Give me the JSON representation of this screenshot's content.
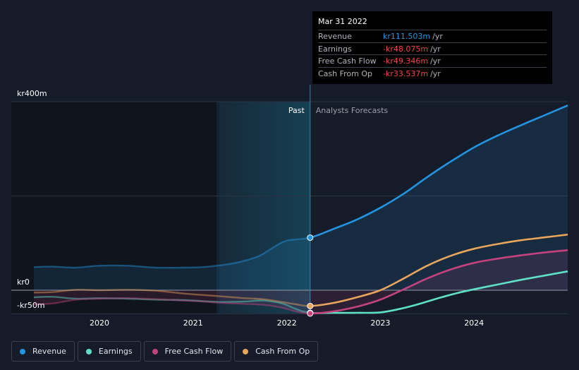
{
  "chart_data": {
    "type": "line",
    "y_axis": {
      "top_label": "kr400m",
      "zero_label": "kr0",
      "bottom_label": "-kr50m",
      "ylim": [
        -50,
        400
      ]
    },
    "xlim": [
      2019.3,
      2025.0
    ],
    "x_ticks": [
      {
        "value": 2020.0,
        "label": "2020"
      },
      {
        "value": 2021.0,
        "label": "2021"
      },
      {
        "value": 2022.0,
        "label": "2022"
      },
      {
        "value": 2023.0,
        "label": "2023"
      },
      {
        "value": 2024.0,
        "label": "2024"
      }
    ],
    "past_label": "Past",
    "forecast_label": "Analysts Forecasts",
    "past_band_start": 2021.25,
    "split_x": 2022.25,
    "series": [
      {
        "name": "Revenue",
        "color": "#2394df",
        "fill": true,
        "points": [
          [
            2019.3,
            49
          ],
          [
            2019.5,
            50
          ],
          [
            2019.75,
            48
          ],
          [
            2020.0,
            52
          ],
          [
            2020.3,
            52
          ],
          [
            2020.6,
            48
          ],
          [
            2020.9,
            48
          ],
          [
            2021.1,
            49
          ],
          [
            2021.3,
            53
          ],
          [
            2021.5,
            60
          ],
          [
            2021.7,
            72
          ],
          [
            2021.85,
            90
          ],
          [
            2022.0,
            105
          ],
          [
            2022.25,
            111.5
          ],
          [
            2022.5,
            130
          ],
          [
            2022.75,
            150
          ],
          [
            2023.0,
            175
          ],
          [
            2023.25,
            205
          ],
          [
            2023.5,
            240
          ],
          [
            2023.75,
            273
          ],
          [
            2024.0,
            303
          ],
          [
            2024.25,
            328
          ],
          [
            2024.5,
            350
          ],
          [
            2024.75,
            371
          ],
          [
            2025.0,
            392
          ]
        ]
      },
      {
        "name": "Earnings",
        "color": "#5ee0c8",
        "fill": false,
        "points": [
          [
            2019.3,
            -15
          ],
          [
            2019.5,
            -14
          ],
          [
            2019.75,
            -18
          ],
          [
            2020.0,
            -17
          ],
          [
            2020.3,
            -18
          ],
          [
            2020.6,
            -20
          ],
          [
            2020.9,
            -21
          ],
          [
            2021.1,
            -23
          ],
          [
            2021.3,
            -25
          ],
          [
            2021.55,
            -24
          ],
          [
            2021.75,
            -22
          ],
          [
            2021.95,
            -28
          ],
          [
            2022.1,
            -40
          ],
          [
            2022.25,
            -48.1
          ],
          [
            2022.5,
            -48
          ],
          [
            2022.75,
            -48
          ],
          [
            2023.0,
            -47
          ],
          [
            2023.2,
            -40
          ],
          [
            2023.4,
            -30
          ],
          [
            2023.6,
            -18
          ],
          [
            2023.8,
            -7
          ],
          [
            2024.0,
            2
          ],
          [
            2024.25,
            12
          ],
          [
            2024.5,
            22
          ],
          [
            2024.75,
            31
          ],
          [
            2025.0,
            40
          ]
        ]
      },
      {
        "name": "Free Cash Flow",
        "color": "#c4427f",
        "fill": true,
        "points": [
          [
            2019.3,
            -30
          ],
          [
            2019.5,
            -28
          ],
          [
            2019.75,
            -20
          ],
          [
            2020.0,
            -18
          ],
          [
            2020.3,
            -17
          ],
          [
            2020.6,
            -19
          ],
          [
            2020.9,
            -22
          ],
          [
            2021.1,
            -24
          ],
          [
            2021.3,
            -27
          ],
          [
            2021.55,
            -29
          ],
          [
            2021.75,
            -31
          ],
          [
            2021.95,
            -37
          ],
          [
            2022.1,
            -45
          ],
          [
            2022.25,
            -49.3
          ],
          [
            2022.5,
            -45
          ],
          [
            2022.75,
            -35
          ],
          [
            2023.0,
            -20
          ],
          [
            2023.25,
            2
          ],
          [
            2023.5,
            25
          ],
          [
            2023.75,
            44
          ],
          [
            2024.0,
            58
          ],
          [
            2024.25,
            67
          ],
          [
            2024.5,
            74
          ],
          [
            2024.75,
            80
          ],
          [
            2025.0,
            85
          ]
        ]
      },
      {
        "name": "Cash From Op",
        "color": "#e8a55b",
        "fill": false,
        "points": [
          [
            2019.3,
            -5
          ],
          [
            2019.5,
            -4
          ],
          [
            2019.75,
            1
          ],
          [
            2020.0,
            0
          ],
          [
            2020.3,
            1
          ],
          [
            2020.6,
            -1
          ],
          [
            2020.9,
            -7
          ],
          [
            2021.1,
            -10
          ],
          [
            2021.3,
            -13
          ],
          [
            2021.55,
            -17
          ],
          [
            2021.75,
            -19
          ],
          [
            2021.95,
            -25
          ],
          [
            2022.1,
            -30
          ],
          [
            2022.25,
            -33.5
          ],
          [
            2022.5,
            -27
          ],
          [
            2022.75,
            -15
          ],
          [
            2023.0,
            0
          ],
          [
            2023.25,
            25
          ],
          [
            2023.5,
            52
          ],
          [
            2023.75,
            73
          ],
          [
            2024.0,
            88
          ],
          [
            2024.25,
            98
          ],
          [
            2024.5,
            106
          ],
          [
            2024.75,
            112
          ],
          [
            2025.0,
            118
          ]
        ]
      }
    ]
  },
  "tooltip": {
    "date": "Mar 31 2022",
    "rows": [
      {
        "label": "Revenue",
        "value": "kr111.503m",
        "unit": "/yr",
        "color": "#2394df"
      },
      {
        "label": "Earnings",
        "value": "-kr48.075m",
        "unit": "/yr",
        "color": "#f2434b"
      },
      {
        "label": "Free Cash Flow",
        "value": "-kr49.346m",
        "unit": "/yr",
        "color": "#f2434b"
      },
      {
        "label": "Cash From Op",
        "value": "-kr33.537m",
        "unit": "/yr",
        "color": "#f2434b"
      }
    ]
  },
  "legend": [
    {
      "label": "Revenue",
      "color": "#2394df"
    },
    {
      "label": "Earnings",
      "color": "#5ee0c8"
    },
    {
      "label": "Free Cash Flow",
      "color": "#c4427f"
    },
    {
      "label": "Cash From Op",
      "color": "#e8a55b"
    }
  ]
}
